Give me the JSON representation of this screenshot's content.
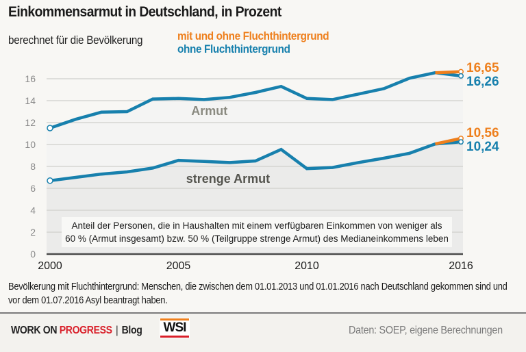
{
  "header": {
    "title": "Einkommensarmut in Deutschland, in Prozent",
    "subtitle": "berechnet für die Bevölkerung",
    "legend": [
      {
        "label": "mit und ohne Fluchthintergrund",
        "color": "#ee7f1c"
      },
      {
        "label": "ohne Fluchthintergrund",
        "color": "#1780ad"
      }
    ]
  },
  "chart_data": {
    "type": "line",
    "title": "Einkommensarmut in Deutschland, in Prozent",
    "subtitle": "berechnet für die Bevölkerung",
    "xlabel": "",
    "ylabel": "",
    "x": [
      2000,
      2001,
      2002,
      2003,
      2004,
      2005,
      2006,
      2007,
      2008,
      2009,
      2010,
      2011,
      2012,
      2013,
      2014,
      2015,
      2016
    ],
    "xlim": [
      2000,
      2016
    ],
    "ylim": [
      0,
      17
    ],
    "x_tick_labels": [
      "2000",
      "2005",
      "2010",
      "2016"
    ],
    "x_ticks": [
      2000,
      2005,
      2010,
      2016
    ],
    "y_ticks": [
      0,
      2,
      4,
      6,
      8,
      10,
      12,
      14,
      16
    ],
    "y_tick_labels": [
      "0",
      "2",
      "4",
      "6",
      "8",
      "10",
      "12",
      "14",
      "16"
    ],
    "grid": true,
    "legend_position": "top",
    "series": [
      {
        "name": "Armut – ohne Fluchthintergrund",
        "group": "Armut",
        "color": "#1780ad",
        "values": [
          11.5,
          12.3,
          12.95,
          13.0,
          14.15,
          14.2,
          14.1,
          14.3,
          14.75,
          15.3,
          14.2,
          14.1,
          14.6,
          15.1,
          16.05,
          16.55,
          16.26
        ]
      },
      {
        "name": "strenge Armut – ohne Fluchthintergrund",
        "group": "strenge Armut",
        "color": "#1780ad",
        "values": [
          6.7,
          7.0,
          7.3,
          7.5,
          7.85,
          8.55,
          8.45,
          8.35,
          8.5,
          9.55,
          7.8,
          7.9,
          8.35,
          8.75,
          9.2,
          10.05,
          10.24
        ]
      },
      {
        "name": "Armut – mit und ohne Fluchthintergrund",
        "group": "Armut",
        "color": "#ee7f1c",
        "x": [
          2015,
          2016
        ],
        "values": [
          16.55,
          16.65
        ]
      },
      {
        "name": "strenge Armut – mit und ohne Fluchthintergrund",
        "group": "strenge Armut",
        "color": "#ee7f1c",
        "x": [
          2015,
          2016
        ],
        "values": [
          10.05,
          10.56
        ]
      }
    ],
    "end_labels": [
      {
        "text": "16,65",
        "color": "#ee7f1c"
      },
      {
        "text": "16,26",
        "color": "#1780ad"
      },
      {
        "text": "10,56",
        "color": "#ee7f1c"
      },
      {
        "text": "10,24",
        "color": "#1780ad"
      }
    ],
    "area_labels": [
      {
        "text": "Armut",
        "x": 2005.5,
        "y": 12.7,
        "color": "#8a8a80"
      },
      {
        "text": "strenge Armut",
        "x": 2005.3,
        "y": 6.5,
        "color": "#55554f"
      }
    ],
    "annotation_box": [
      "Anteil der Personen, die in Haushalten mit einem verfügbaren Einkommen von weniger als",
      "60 % (Armut insgesamt) bzw. 50 % (Teilgruppe strenge Armut) des Medianeinkommens leben"
    ],
    "colors": {
      "line": "#1780ad",
      "refugee": "#ee7f1c",
      "area_armut": "#f4f4f3",
      "area_strenge": "#ebebea",
      "grid": "#cfcfcc"
    }
  },
  "note": "Bevölkerung mit Fluchthintergrund: Menschen, die zwischen dem 01.01.2013 und 01.01.2016 nach Deutschland gekommen sind und vor dem 01.07.2016 Asyl beantragt haben.",
  "footer": {
    "brand_part1": "WORK ON ",
    "brand_part2": "PROGRESS",
    "separator": "|",
    "blog": "Blog",
    "logo_text": "WSI",
    "source": "Daten: SOEP, eigene Berechnungen"
  }
}
